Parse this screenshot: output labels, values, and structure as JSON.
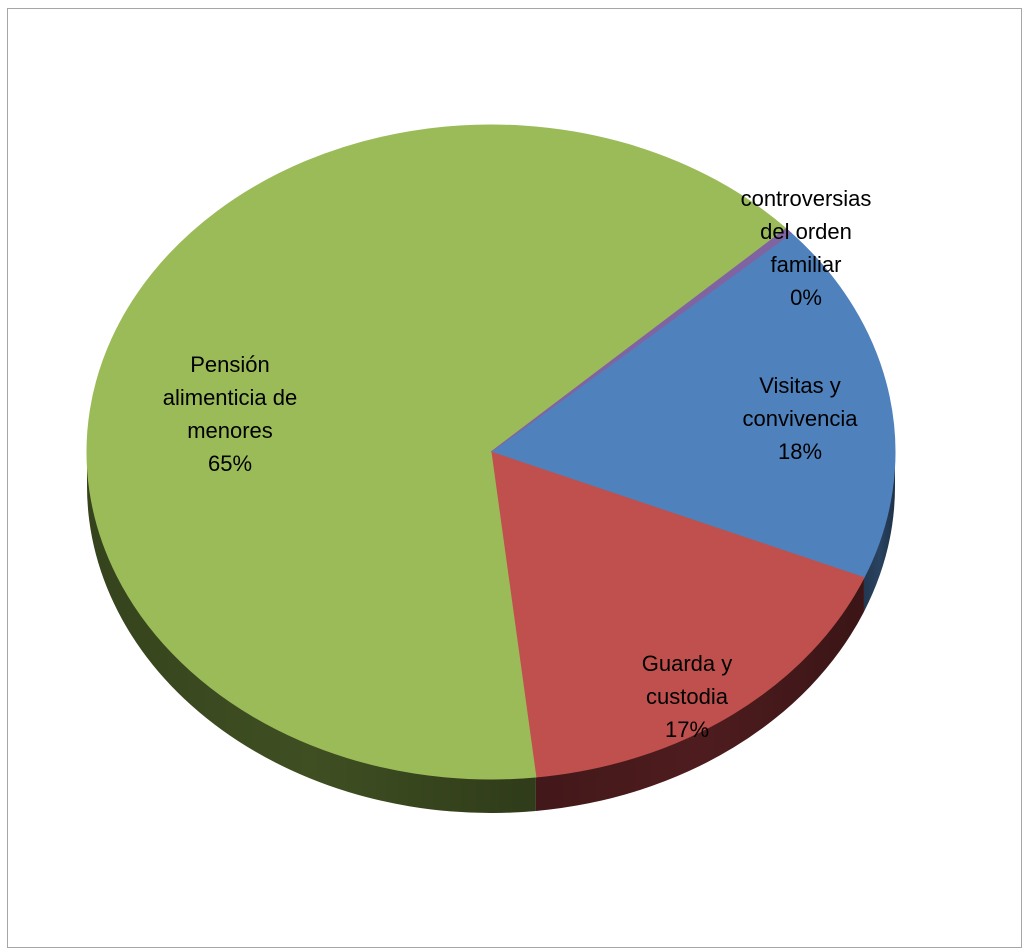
{
  "chart_data": {
    "type": "pie",
    "style": "3d",
    "slices": [
      {
        "category": "Visitas y convivencia",
        "label_lines": [
          "Visitas y",
          "convivencia",
          "18%"
        ],
        "percent": 18,
        "color": "#4f81bd",
        "side_color": "#29425f"
      },
      {
        "category": "Guarda y custodia",
        "label_lines": [
          "Guarda y",
          "custodia",
          "17%"
        ],
        "percent": 17,
        "color": "#c0504d",
        "side_color": "#4e1c1e"
      },
      {
        "category": "Pensión alimenticia de menores",
        "label_lines": [
          "Pensión",
          "alimenticia de",
          "menores",
          "65%"
        ],
        "percent": 65,
        "color": "#9bbb59",
        "side_color": "#3f4f22"
      },
      {
        "category": "controversias del orden familiar",
        "label_lines": [
          "controversias",
          "del orden",
          "familiar",
          "0%"
        ],
        "percent": 0.3,
        "color": "#8064a2",
        "side_color": "#3d2f50"
      }
    ],
    "legend": "none"
  }
}
